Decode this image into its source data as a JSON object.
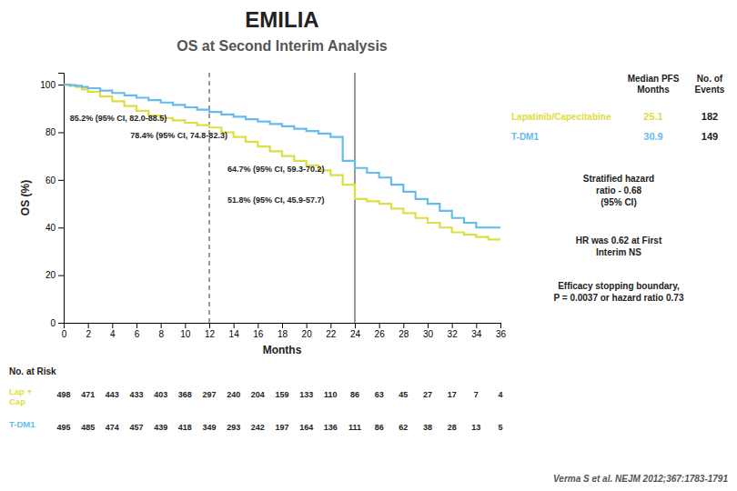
{
  "chart_data": {
    "type": "step",
    "title": "EMILIA",
    "subtitle": "OS at Second Interim Analysis",
    "x_label": "Months",
    "y_label": "OS (%)",
    "x": [
      0,
      0.5,
      1,
      1.5,
      2,
      3,
      4,
      5,
      6,
      7,
      8,
      9,
      10,
      11,
      12,
      13,
      14,
      15,
      16,
      17,
      18,
      19,
      20,
      21,
      22,
      23,
      24,
      25,
      26,
      27,
      28,
      29,
      30,
      31,
      32,
      33,
      34,
      35,
      36
    ],
    "series": [
      {
        "name": "Lapatinib/Capecitabine",
        "color": "#DDDD44",
        "values": [
          100,
          99.5,
          99,
          98,
          97,
          95,
          93,
          91,
          89,
          87,
          86,
          85,
          84,
          83,
          82,
          80,
          78,
          76,
          74,
          72,
          70,
          68,
          66,
          64,
          62,
          58,
          52,
          51,
          50,
          48,
          46,
          44,
          42,
          40,
          38,
          37,
          36,
          35,
          35
        ],
        "median_months": 25.1,
        "events": 182
      },
      {
        "name": "T-DM1",
        "color": "#66BBEE",
        "values": [
          100,
          99.8,
          99.5,
          99,
          98.5,
          97.5,
          96.5,
          95.5,
          94.5,
          93.5,
          92.5,
          91.5,
          90.5,
          89.5,
          88.5,
          87.5,
          86.5,
          85.5,
          84.5,
          83.5,
          82.5,
          81.5,
          80.5,
          79.5,
          78,
          68,
          65,
          63,
          61,
          58,
          55,
          52,
          50,
          47,
          44,
          42,
          40,
          40,
          40
        ],
        "median_months": 30.9,
        "events": 149
      }
    ],
    "xlim": [
      0,
      36
    ],
    "ylim": [
      0,
      105
    ],
    "xticks": [
      0,
      2,
      4,
      6,
      8,
      10,
      12,
      14,
      16,
      18,
      20,
      22,
      24,
      26,
      28,
      30,
      32,
      34,
      36
    ],
    "yticks": [
      0,
      20,
      40,
      60,
      80,
      100
    ],
    "grid": false,
    "summary_headers": [
      "Median  PFS\nMonths",
      "No. of\nEvents"
    ],
    "reference_lines": [
      {
        "x": 12,
        "line_style": "dashed"
      },
      {
        "x": 24,
        "line_style": "solid"
      }
    ],
    "annotations": [
      {
        "text": "85.2% (95% CI, 82.0-88.5)",
        "x": 0.5,
        "y": 84.8
      },
      {
        "text": "78.4% (95% CI, 74.8-82.3)",
        "x": 5.5,
        "y": 77.5
      },
      {
        "text": "64.7% (95% CI, 59.3-70.2)",
        "x": 13.5,
        "y": 63.5
      },
      {
        "text": "51.8% (95% CI, 45.9-57.7)",
        "x": 13.5,
        "y": 50.5
      }
    ],
    "notes": [
      "Stratified hazard\nratio - 0.68\n(95% CI)",
      "HR was 0.62 at First\nInterim NS",
      "Efficacy stopping boundary,\nP = 0.0037 or hazard ratio 0.73"
    ],
    "risk_table": {
      "title": "No. at Risk",
      "rows": [
        {
          "label": "Lap +\nCap",
          "values": [
            498,
            471,
            443,
            433,
            403,
            368,
            297,
            240,
            204,
            159,
            133,
            110,
            86,
            63,
            45,
            27,
            17,
            7,
            4
          ]
        },
        {
          "label": "T-DM1",
          "values": [
            495,
            485,
            474,
            457,
            439,
            418,
            349,
            293,
            242,
            197,
            164,
            136,
            111,
            86,
            62,
            38,
            28,
            13,
            5
          ]
        }
      ]
    },
    "source": "Verma S et al. NEJM 2012;367:1783-1791"
  }
}
